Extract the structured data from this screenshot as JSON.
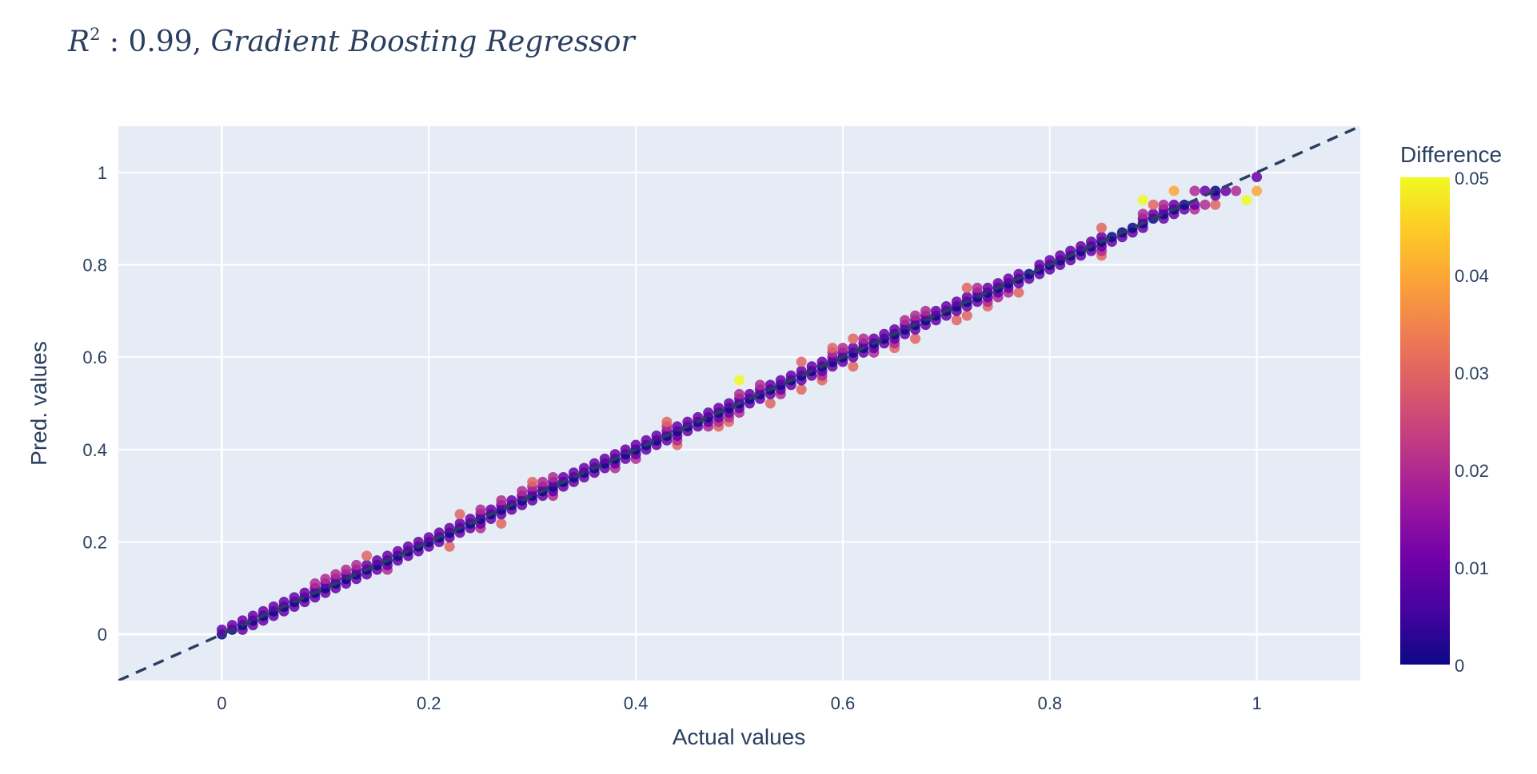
{
  "chart_data": {
    "type": "scatter",
    "title_parts": {
      "var": "R",
      "sup": "2",
      "mid": " : 0.99, ",
      "model": "Gradient Boosting Regressor"
    },
    "xlabel": "Actual values",
    "ylabel": "Pred. values",
    "xlim": [
      -0.1,
      1.1
    ],
    "ylim": [
      -0.1,
      1.1
    ],
    "x_ticks": [
      {
        "value": 0,
        "label": "0"
      },
      {
        "value": 0.2,
        "label": "0.2"
      },
      {
        "value": 0.4,
        "label": "0.4"
      },
      {
        "value": 0.6,
        "label": "0.6"
      },
      {
        "value": 0.8,
        "label": "0.8"
      },
      {
        "value": 1,
        "label": "1"
      }
    ],
    "y_ticks": [
      {
        "value": 0,
        "label": "0"
      },
      {
        "value": 0.2,
        "label": "0.2"
      },
      {
        "value": 0.4,
        "label": "0.4"
      },
      {
        "value": 0.6,
        "label": "0.6"
      },
      {
        "value": 0.8,
        "label": "0.8"
      },
      {
        "value": 1,
        "label": "1"
      }
    ],
    "reference_line": {
      "from": [
        -0.1,
        -0.1
      ],
      "to": [
        1.1,
        1.1
      ],
      "style": "dashed",
      "color": "#2a3f5f"
    },
    "colorbar": {
      "title": "Difference",
      "range": [
        0,
        0.05
      ],
      "ticks": [
        {
          "value": 0,
          "label": "0"
        },
        {
          "value": 0.01,
          "label": "0.01"
        },
        {
          "value": 0.02,
          "label": "0.02"
        },
        {
          "value": 0.03,
          "label": "0.03"
        },
        {
          "value": 0.04,
          "label": "0.04"
        },
        {
          "value": 0.05,
          "label": "0.05"
        }
      ],
      "colorscale": [
        "#0d0887",
        "#46039f",
        "#7201a8",
        "#9c179e",
        "#bd3786",
        "#d8576b",
        "#ed7953",
        "#fb9f3a",
        "#fdca26",
        "#f0f921"
      ]
    },
    "grid": true,
    "legend": "colorbar-right",
    "colors": {
      "plot_bg": "#e5ecf6",
      "grid": "#ffffff",
      "text": "#2a3f5f"
    },
    "points": [
      [
        0,
        0
      ],
      [
        0,
        0.01
      ],
      [
        0.01,
        0.01
      ],
      [
        0.01,
        0.02
      ],
      [
        0.02,
        0.01
      ],
      [
        0.02,
        0.02
      ],
      [
        0.02,
        0.03
      ],
      [
        0.03,
        0.02
      ],
      [
        0.03,
        0.03
      ],
      [
        0.03,
        0.04
      ],
      [
        0.04,
        0.03
      ],
      [
        0.04,
        0.04
      ],
      [
        0.04,
        0.05
      ],
      [
        0.05,
        0.04
      ],
      [
        0.05,
        0.05
      ],
      [
        0.05,
        0.06
      ],
      [
        0.06,
        0.05
      ],
      [
        0.06,
        0.06
      ],
      [
        0.06,
        0.07
      ],
      [
        0.07,
        0.06
      ],
      [
        0.07,
        0.07
      ],
      [
        0.07,
        0.08
      ],
      [
        0.08,
        0.07
      ],
      [
        0.08,
        0.08
      ],
      [
        0.08,
        0.09
      ],
      [
        0.09,
        0.08
      ],
      [
        0.09,
        0.09
      ],
      [
        0.09,
        0.1
      ],
      [
        0.09,
        0.11
      ],
      [
        0.1,
        0.09
      ],
      [
        0.1,
        0.1
      ],
      [
        0.1,
        0.11
      ],
      [
        0.1,
        0.12
      ],
      [
        0.11,
        0.1
      ],
      [
        0.11,
        0.11
      ],
      [
        0.11,
        0.12
      ],
      [
        0.11,
        0.13
      ],
      [
        0.12,
        0.11
      ],
      [
        0.12,
        0.12
      ],
      [
        0.12,
        0.13
      ],
      [
        0.12,
        0.14
      ],
      [
        0.13,
        0.12
      ],
      [
        0.13,
        0.13
      ],
      [
        0.13,
        0.14
      ],
      [
        0.13,
        0.15
      ],
      [
        0.14,
        0.13
      ],
      [
        0.14,
        0.14
      ],
      [
        0.14,
        0.15
      ],
      [
        0.14,
        0.17
      ],
      [
        0.15,
        0.14
      ],
      [
        0.15,
        0.15
      ],
      [
        0.15,
        0.16
      ],
      [
        0.16,
        0.14
      ],
      [
        0.16,
        0.15
      ],
      [
        0.16,
        0.16
      ],
      [
        0.16,
        0.17
      ],
      [
        0.17,
        0.16
      ],
      [
        0.17,
        0.17
      ],
      [
        0.17,
        0.18
      ],
      [
        0.18,
        0.17
      ],
      [
        0.18,
        0.18
      ],
      [
        0.18,
        0.19
      ],
      [
        0.19,
        0.18
      ],
      [
        0.19,
        0.19
      ],
      [
        0.19,
        0.2
      ],
      [
        0.2,
        0.19
      ],
      [
        0.2,
        0.2
      ],
      [
        0.2,
        0.21
      ],
      [
        0.21,
        0.2
      ],
      [
        0.21,
        0.21
      ],
      [
        0.21,
        0.22
      ],
      [
        0.22,
        0.19
      ],
      [
        0.22,
        0.21
      ],
      [
        0.22,
        0.22
      ],
      [
        0.22,
        0.23
      ],
      [
        0.23,
        0.22
      ],
      [
        0.23,
        0.23
      ],
      [
        0.23,
        0.24
      ],
      [
        0.23,
        0.26
      ],
      [
        0.24,
        0.23
      ],
      [
        0.24,
        0.24
      ],
      [
        0.24,
        0.25
      ],
      [
        0.25,
        0.23
      ],
      [
        0.25,
        0.24
      ],
      [
        0.25,
        0.25
      ],
      [
        0.25,
        0.26
      ],
      [
        0.25,
        0.27
      ],
      [
        0.26,
        0.25
      ],
      [
        0.26,
        0.26
      ],
      [
        0.26,
        0.27
      ],
      [
        0.27,
        0.24
      ],
      [
        0.27,
        0.26
      ],
      [
        0.27,
        0.27
      ],
      [
        0.27,
        0.28
      ],
      [
        0.27,
        0.29
      ],
      [
        0.28,
        0.27
      ],
      [
        0.28,
        0.28
      ],
      [
        0.28,
        0.29
      ],
      [
        0.29,
        0.28
      ],
      [
        0.29,
        0.29
      ],
      [
        0.29,
        0.3
      ],
      [
        0.29,
        0.31
      ],
      [
        0.3,
        0.29
      ],
      [
        0.3,
        0.3
      ],
      [
        0.3,
        0.31
      ],
      [
        0.3,
        0.32
      ],
      [
        0.3,
        0.33
      ],
      [
        0.31,
        0.3
      ],
      [
        0.31,
        0.31
      ],
      [
        0.31,
        0.32
      ],
      [
        0.31,
        0.33
      ],
      [
        0.32,
        0.3
      ],
      [
        0.32,
        0.31
      ],
      [
        0.32,
        0.32
      ],
      [
        0.32,
        0.33
      ],
      [
        0.32,
        0.34
      ],
      [
        0.33,
        0.32
      ],
      [
        0.33,
        0.33
      ],
      [
        0.33,
        0.34
      ],
      [
        0.34,
        0.33
      ],
      [
        0.34,
        0.34
      ],
      [
        0.34,
        0.35
      ],
      [
        0.35,
        0.34
      ],
      [
        0.35,
        0.35
      ],
      [
        0.35,
        0.36
      ],
      [
        0.36,
        0.35
      ],
      [
        0.36,
        0.36
      ],
      [
        0.36,
        0.37
      ],
      [
        0.37,
        0.36
      ],
      [
        0.37,
        0.37
      ],
      [
        0.37,
        0.38
      ],
      [
        0.38,
        0.36
      ],
      [
        0.38,
        0.37
      ],
      [
        0.38,
        0.38
      ],
      [
        0.38,
        0.39
      ],
      [
        0.39,
        0.38
      ],
      [
        0.39,
        0.39
      ],
      [
        0.39,
        0.4
      ],
      [
        0.4,
        0.38
      ],
      [
        0.4,
        0.39
      ],
      [
        0.4,
        0.4
      ],
      [
        0.4,
        0.41
      ],
      [
        0.41,
        0.4
      ],
      [
        0.41,
        0.41
      ],
      [
        0.41,
        0.42
      ],
      [
        0.42,
        0.41
      ],
      [
        0.42,
        0.42
      ],
      [
        0.42,
        0.43
      ],
      [
        0.43,
        0.42
      ],
      [
        0.43,
        0.43
      ],
      [
        0.43,
        0.44
      ],
      [
        0.43,
        0.45
      ],
      [
        0.43,
        0.46
      ],
      [
        0.44,
        0.41
      ],
      [
        0.44,
        0.42
      ],
      [
        0.44,
        0.43
      ],
      [
        0.44,
        0.44
      ],
      [
        0.44,
        0.45
      ],
      [
        0.45,
        0.44
      ],
      [
        0.45,
        0.45
      ],
      [
        0.45,
        0.46
      ],
      [
        0.46,
        0.45
      ],
      [
        0.46,
        0.46
      ],
      [
        0.46,
        0.47
      ],
      [
        0.47,
        0.45
      ],
      [
        0.47,
        0.46
      ],
      [
        0.47,
        0.47
      ],
      [
        0.47,
        0.48
      ],
      [
        0.48,
        0.45
      ],
      [
        0.48,
        0.46
      ],
      [
        0.48,
        0.47
      ],
      [
        0.48,
        0.48
      ],
      [
        0.48,
        0.49
      ],
      [
        0.49,
        0.46
      ],
      [
        0.49,
        0.47
      ],
      [
        0.49,
        0.48
      ],
      [
        0.49,
        0.49
      ],
      [
        0.49,
        0.5
      ],
      [
        0.5,
        0.48
      ],
      [
        0.5,
        0.49
      ],
      [
        0.5,
        0.5
      ],
      [
        0.5,
        0.51
      ],
      [
        0.5,
        0.52
      ],
      [
        0.5,
        0.55
      ],
      [
        0.51,
        0.5
      ],
      [
        0.51,
        0.51
      ],
      [
        0.51,
        0.52
      ],
      [
        0.52,
        0.51
      ],
      [
        0.52,
        0.52
      ],
      [
        0.52,
        0.53
      ],
      [
        0.52,
        0.54
      ],
      [
        0.53,
        0.5
      ],
      [
        0.53,
        0.52
      ],
      [
        0.53,
        0.53
      ],
      [
        0.53,
        0.54
      ],
      [
        0.54,
        0.52
      ],
      [
        0.54,
        0.53
      ],
      [
        0.54,
        0.54
      ],
      [
        0.54,
        0.55
      ],
      [
        0.55,
        0.54
      ],
      [
        0.55,
        0.55
      ],
      [
        0.55,
        0.56
      ],
      [
        0.56,
        0.53
      ],
      [
        0.56,
        0.55
      ],
      [
        0.56,
        0.56
      ],
      [
        0.56,
        0.57
      ],
      [
        0.56,
        0.59
      ],
      [
        0.57,
        0.56
      ],
      [
        0.57,
        0.57
      ],
      [
        0.57,
        0.58
      ],
      [
        0.58,
        0.55
      ],
      [
        0.58,
        0.56
      ],
      [
        0.58,
        0.57
      ],
      [
        0.58,
        0.58
      ],
      [
        0.58,
        0.59
      ],
      [
        0.59,
        0.58
      ],
      [
        0.59,
        0.59
      ],
      [
        0.59,
        0.6
      ],
      [
        0.59,
        0.61
      ],
      [
        0.59,
        0.62
      ],
      [
        0.6,
        0.59
      ],
      [
        0.6,
        0.6
      ],
      [
        0.6,
        0.61
      ],
      [
        0.6,
        0.62
      ],
      [
        0.61,
        0.58
      ],
      [
        0.61,
        0.6
      ],
      [
        0.61,
        0.61
      ],
      [
        0.61,
        0.62
      ],
      [
        0.61,
        0.64
      ],
      [
        0.62,
        0.61
      ],
      [
        0.62,
        0.62
      ],
      [
        0.62,
        0.63
      ],
      [
        0.62,
        0.64
      ],
      [
        0.63,
        0.61
      ],
      [
        0.63,
        0.62
      ],
      [
        0.63,
        0.63
      ],
      [
        0.63,
        0.64
      ],
      [
        0.64,
        0.63
      ],
      [
        0.64,
        0.64
      ],
      [
        0.64,
        0.65
      ],
      [
        0.65,
        0.62
      ],
      [
        0.65,
        0.63
      ],
      [
        0.65,
        0.64
      ],
      [
        0.65,
        0.65
      ],
      [
        0.65,
        0.66
      ],
      [
        0.66,
        0.65
      ],
      [
        0.66,
        0.66
      ],
      [
        0.66,
        0.67
      ],
      [
        0.66,
        0.68
      ],
      [
        0.67,
        0.64
      ],
      [
        0.67,
        0.66
      ],
      [
        0.67,
        0.67
      ],
      [
        0.67,
        0.68
      ],
      [
        0.67,
        0.69
      ],
      [
        0.68,
        0.67
      ],
      [
        0.68,
        0.68
      ],
      [
        0.68,
        0.69
      ],
      [
        0.68,
        0.7
      ],
      [
        0.69,
        0.68
      ],
      [
        0.69,
        0.69
      ],
      [
        0.69,
        0.7
      ],
      [
        0.7,
        0.69
      ],
      [
        0.7,
        0.7
      ],
      [
        0.7,
        0.71
      ],
      [
        0.71,
        0.68
      ],
      [
        0.71,
        0.7
      ],
      [
        0.71,
        0.71
      ],
      [
        0.71,
        0.72
      ],
      [
        0.72,
        0.69
      ],
      [
        0.72,
        0.71
      ],
      [
        0.72,
        0.72
      ],
      [
        0.72,
        0.73
      ],
      [
        0.72,
        0.75
      ],
      [
        0.73,
        0.72
      ],
      [
        0.73,
        0.73
      ],
      [
        0.73,
        0.74
      ],
      [
        0.73,
        0.75
      ],
      [
        0.74,
        0.71
      ],
      [
        0.74,
        0.72
      ],
      [
        0.74,
        0.73
      ],
      [
        0.74,
        0.74
      ],
      [
        0.74,
        0.75
      ],
      [
        0.75,
        0.73
      ],
      [
        0.75,
        0.74
      ],
      [
        0.75,
        0.75
      ],
      [
        0.75,
        0.76
      ],
      [
        0.76,
        0.74
      ],
      [
        0.76,
        0.75
      ],
      [
        0.76,
        0.76
      ],
      [
        0.76,
        0.77
      ],
      [
        0.77,
        0.74
      ],
      [
        0.77,
        0.76
      ],
      [
        0.77,
        0.77
      ],
      [
        0.77,
        0.78
      ],
      [
        0.78,
        0.77
      ],
      [
        0.78,
        0.78
      ],
      [
        0.79,
        0.78
      ],
      [
        0.79,
        0.79
      ],
      [
        0.79,
        0.8
      ],
      [
        0.8,
        0.79
      ],
      [
        0.8,
        0.8
      ],
      [
        0.8,
        0.81
      ],
      [
        0.81,
        0.8
      ],
      [
        0.81,
        0.81
      ],
      [
        0.81,
        0.82
      ],
      [
        0.82,
        0.81
      ],
      [
        0.82,
        0.82
      ],
      [
        0.82,
        0.83
      ],
      [
        0.83,
        0.82
      ],
      [
        0.83,
        0.83
      ],
      [
        0.83,
        0.84
      ],
      [
        0.84,
        0.83
      ],
      [
        0.84,
        0.84
      ],
      [
        0.84,
        0.85
      ],
      [
        0.85,
        0.82
      ],
      [
        0.85,
        0.83
      ],
      [
        0.85,
        0.84
      ],
      [
        0.85,
        0.85
      ],
      [
        0.85,
        0.86
      ],
      [
        0.85,
        0.88
      ],
      [
        0.86,
        0.85
      ],
      [
        0.86,
        0.86
      ],
      [
        0.87,
        0.86
      ],
      [
        0.87,
        0.87
      ],
      [
        0.88,
        0.87
      ],
      [
        0.88,
        0.88
      ],
      [
        0.89,
        0.88
      ],
      [
        0.89,
        0.89
      ],
      [
        0.89,
        0.9
      ],
      [
        0.89,
        0.91
      ],
      [
        0.89,
        0.94
      ],
      [
        0.9,
        0.9
      ],
      [
        0.9,
        0.91
      ],
      [
        0.9,
        0.93
      ],
      [
        0.91,
        0.9
      ],
      [
        0.91,
        0.91
      ],
      [
        0.91,
        0.92
      ],
      [
        0.91,
        0.93
      ],
      [
        0.92,
        0.91
      ],
      [
        0.92,
        0.92
      ],
      [
        0.92,
        0.93
      ],
      [
        0.92,
        0.96
      ],
      [
        0.93,
        0.92
      ],
      [
        0.93,
        0.93
      ],
      [
        0.94,
        0.92
      ],
      [
        0.94,
        0.93
      ],
      [
        0.94,
        0.96
      ],
      [
        0.95,
        0.93
      ],
      [
        0.95,
        0.96
      ],
      [
        0.96,
        0.93
      ],
      [
        0.96,
        0.95
      ],
      [
        0.96,
        0.96
      ],
      [
        0.97,
        0.96
      ],
      [
        0.98,
        0.96
      ],
      [
        0.99,
        0.94
      ],
      [
        1,
        0.96
      ],
      [
        1,
        0.99
      ]
    ]
  }
}
